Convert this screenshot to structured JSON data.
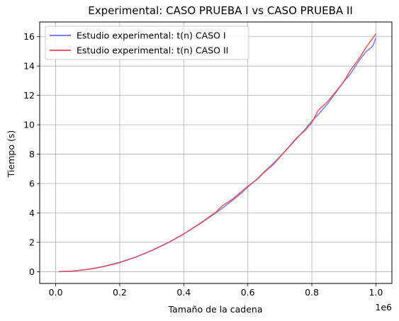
{
  "chart_data": {
    "type": "line",
    "title": "Experimental: CASO PRUEBA I vs CASO PRUEBA II",
    "xlabel": "Tamaño de la cadena",
    "ylabel": "Tiempo (s)",
    "x_offset_label": "1e6",
    "xlim": [
      -0.05,
      1.05
    ],
    "ylim": [
      -0.8,
      17.0
    ],
    "x_ticks": [
      0.0,
      0.2,
      0.4,
      0.6,
      0.8,
      1.0
    ],
    "x_tick_labels": [
      "0.0",
      "0.2",
      "0.4",
      "0.6",
      "0.8",
      "1.0"
    ],
    "y_ticks": [
      0,
      2,
      4,
      6,
      8,
      10,
      12,
      14,
      16
    ],
    "y_tick_labels": [
      "0",
      "2",
      "4",
      "6",
      "8",
      "10",
      "12",
      "14",
      "16"
    ],
    "grid": true,
    "legend_position": "upper-left",
    "x": [
      0.01,
      0.05,
      0.1,
      0.15,
      0.2,
      0.25,
      0.3,
      0.35,
      0.4,
      0.45,
      0.5,
      0.52,
      0.55,
      0.58,
      0.6,
      0.63,
      0.65,
      0.68,
      0.7,
      0.72,
      0.75,
      0.78,
      0.8,
      0.82,
      0.85,
      0.88,
      0.9,
      0.92,
      0.95,
      0.97,
      0.99,
      1.0
    ],
    "series": [
      {
        "name": "Estudio experimental: t(n) CASO I",
        "color": "#6b6bf0",
        "values": [
          0.0,
          0.04,
          0.16,
          0.36,
          0.64,
          1.0,
          1.45,
          1.97,
          2.57,
          3.25,
          4.0,
          4.32,
          4.82,
          5.35,
          5.77,
          6.33,
          6.78,
          7.38,
          7.83,
          8.28,
          9.0,
          9.72,
          10.25,
          10.7,
          11.45,
          12.35,
          12.95,
          13.45,
          14.45,
          15.0,
          15.35,
          15.9
        ]
      },
      {
        "name": "Estudio experimental: t(n) CASO II",
        "color": "#e8474d",
        "values": [
          0.0,
          0.03,
          0.15,
          0.35,
          0.62,
          0.99,
          1.44,
          1.96,
          2.56,
          3.28,
          4.05,
          4.48,
          4.9,
          5.45,
          5.82,
          6.3,
          6.75,
          7.3,
          7.8,
          8.3,
          9.05,
          9.65,
          10.15,
          11.0,
          11.6,
          12.4,
          12.95,
          13.7,
          14.6,
          15.3,
          15.9,
          16.2
        ]
      }
    ]
  }
}
